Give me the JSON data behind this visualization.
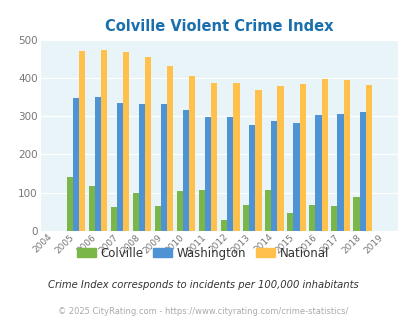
{
  "title": "Colville Violent Crime Index",
  "years": [
    2004,
    2005,
    2006,
    2007,
    2008,
    2009,
    2010,
    2011,
    2012,
    2013,
    2014,
    2015,
    2016,
    2017,
    2018,
    2019
  ],
  "colville": [
    0,
    140,
    118,
    62,
    100,
    65,
    105,
    108,
    28,
    68,
    108,
    46,
    68,
    65,
    88,
    0
  ],
  "washington": [
    0,
    347,
    349,
    335,
    332,
    333,
    315,
    299,
    298,
    278,
    288,
    283,
    303,
    306,
    312,
    0
  ],
  "national": [
    0,
    469,
    474,
    467,
    455,
    432,
    405,
    387,
    387,
    368,
    378,
    383,
    397,
    394,
    381,
    0
  ],
  "colville_color": "#7ab648",
  "washington_color": "#4e93d4",
  "national_color": "#ffc04c",
  "bg_color": "#e8f4f8",
  "title_color": "#1a6fad",
  "ylabel_max": 500,
  "yticks": [
    0,
    100,
    200,
    300,
    400,
    500
  ],
  "footnote": "Crime Index corresponds to incidents per 100,000 inhabitants",
  "copyright": "© 2025 CityRating.com - https://www.cityrating.com/crime-statistics/",
  "bar_width": 0.28,
  "legend_labels": [
    "Colville",
    "Washington",
    "National"
  ]
}
